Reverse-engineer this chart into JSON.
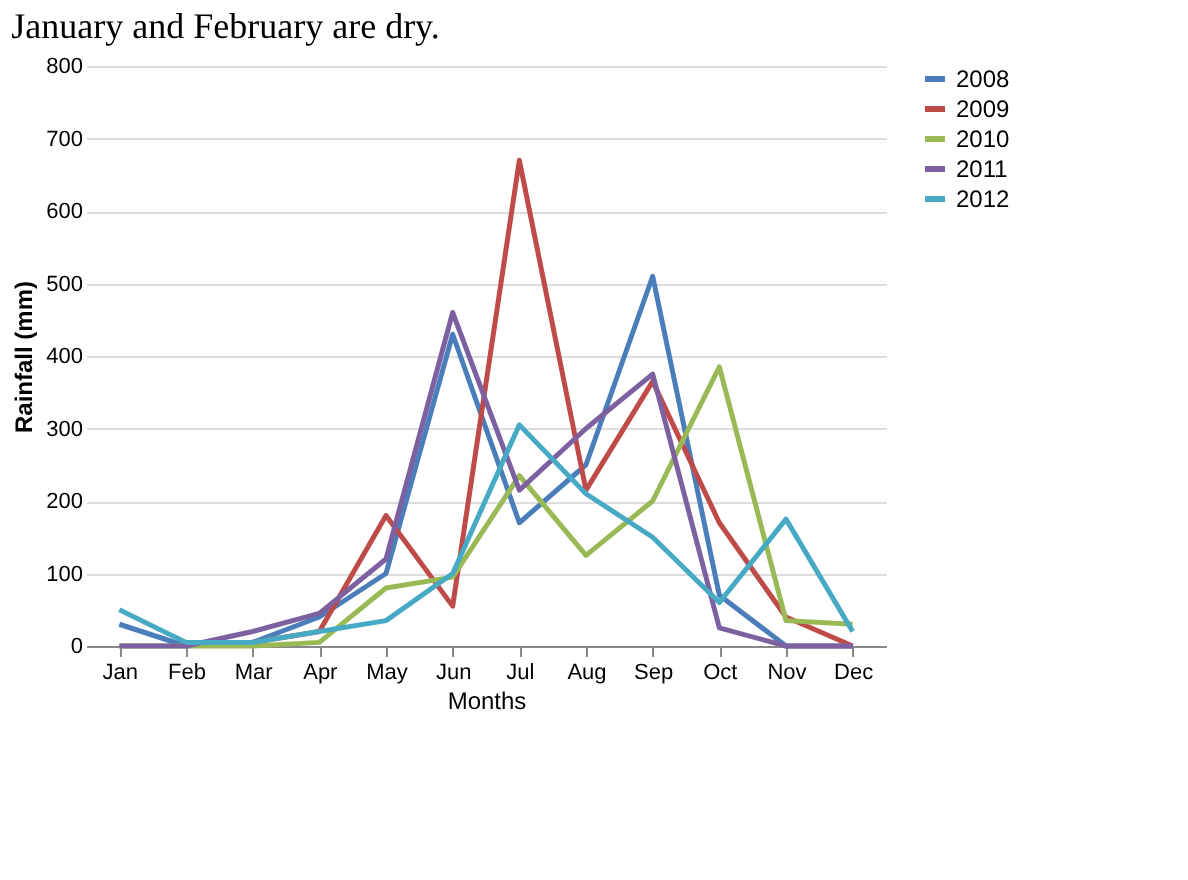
{
  "chart_data": {
    "type": "line",
    "annotations": [
      "January and February are dry."
    ],
    "xlabel": "Months",
    "ylabel": "Rainfall (mm)",
    "categories": [
      "Jan",
      "Feb",
      "Mar",
      "Apr",
      "May",
      "Jun",
      "Jul",
      "Aug",
      "Sep",
      "Oct",
      "Nov",
      "Dec"
    ],
    "series": [
      {
        "name": "2008",
        "color": "#4a7ebb",
        "values": [
          30,
          0,
          5,
          40,
          100,
          430,
          170,
          250,
          510,
          70,
          0,
          0
        ]
      },
      {
        "name": "2009",
        "color": "#be4b48",
        "values": [
          null,
          null,
          5,
          20,
          180,
          55,
          670,
          215,
          365,
          170,
          40,
          0
        ]
      },
      {
        "name": "2010",
        "color": "#98b954",
        "values": [
          0,
          0,
          0,
          5,
          80,
          95,
          235,
          125,
          200,
          385,
          35,
          30
        ]
      },
      {
        "name": "2011",
        "color": "#7d60a0",
        "values": [
          0,
          0,
          20,
          45,
          120,
          460,
          215,
          300,
          375,
          25,
          0,
          0
        ]
      },
      {
        "name": "2012",
        "color": "#46aac5",
        "values": [
          50,
          5,
          5,
          20,
          35,
          100,
          305,
          210,
          150,
          60,
          175,
          20
        ]
      }
    ],
    "ylim": [
      0,
      800
    ],
    "yticks": [
      0,
      100,
      200,
      300,
      400,
      500,
      600,
      700,
      800
    ],
    "grid": "y",
    "legend": "right",
    "marker": "none",
    "line_style": "solid"
  }
}
